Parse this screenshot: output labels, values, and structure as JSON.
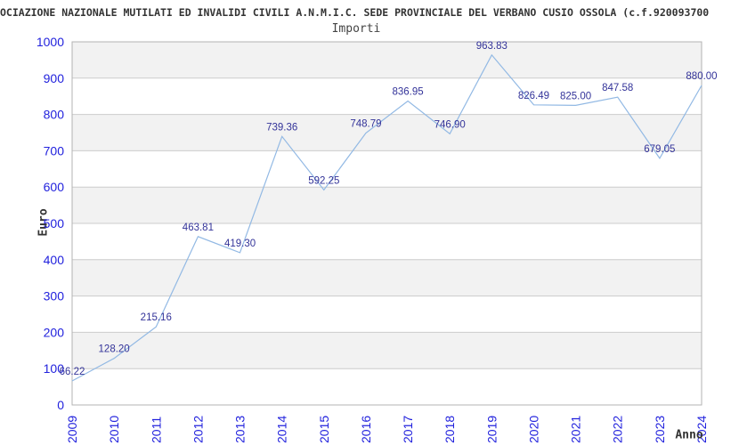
{
  "header": {
    "title": "OCIAZIONE NAZIONALE MUTILATI ED INVALIDI CIVILI A.N.M.I.C. SEDE PROVINCIALE DEL VERBANO CUSIO OSSOLA (c.f.920093700",
    "subtitle": "Importi"
  },
  "chart_data": {
    "type": "line",
    "title": "Importi",
    "xlabel": "Anno",
    "ylabel": "Euro",
    "categories": [
      "2009",
      "2010",
      "2011",
      "2012",
      "2013",
      "2014",
      "2015",
      "2016",
      "2017",
      "2018",
      "2019",
      "2020",
      "2021",
      "2022",
      "2023",
      "2024"
    ],
    "values": [
      66.22,
      128.2,
      215.16,
      463.81,
      419.3,
      739.36,
      592.25,
      748.79,
      836.95,
      746.9,
      963.83,
      826.49,
      825.0,
      847.58,
      679.05,
      880.0
    ],
    "point_labels": [
      "66.22",
      "128.20",
      "215.16",
      "463.81",
      "419.30",
      "739.36",
      "592.25",
      "748.79",
      "836.95",
      "746.90",
      "963.83",
      "826.49",
      "825.00",
      "847.58",
      "679.05",
      "880.00"
    ],
    "ylim": [
      0,
      1000
    ],
    "ytick_step": 100,
    "ytick_labels": [
      "0",
      "100",
      "200",
      "300",
      "400",
      "500",
      "600",
      "700",
      "800",
      "900",
      "1000"
    ],
    "grid": true,
    "legend": "none",
    "band_fill": "alternating-horizontal"
  },
  "colors": {
    "line": "#92b9e4",
    "tick_label": "#2222dd",
    "data_label": "#333399",
    "band_gray": "#f2f2f2",
    "band_white": "#ffffff",
    "gridline": "#cccccc",
    "plot_border": "#b3b3b3",
    "title_text": "#333333"
  }
}
